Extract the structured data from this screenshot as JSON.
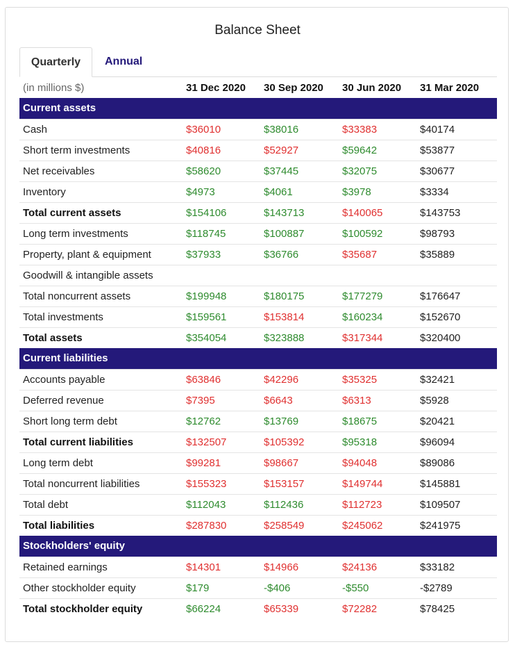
{
  "title": "Balance Sheet",
  "tabs": [
    {
      "label": "Quarterly",
      "active": true
    },
    {
      "label": "Annual",
      "active": false
    }
  ],
  "colors": {
    "header_bg": "#24197a",
    "positive": "#2e8b2e",
    "negative": "#e03030",
    "neutral": "#222222"
  },
  "table": {
    "unit_label": "(in millions $)",
    "columns": [
      "31 Dec 2020",
      "30 Sep 2020",
      "30 Jun 2020",
      "31 Mar 2020"
    ],
    "rows": [
      {
        "type": "section",
        "label": "Current assets"
      },
      {
        "label": "Cash",
        "bold": false,
        "cells": [
          {
            "v": "$36010",
            "c": "neg"
          },
          {
            "v": "$38016",
            "c": "pos"
          },
          {
            "v": "$33383",
            "c": "neg"
          },
          {
            "v": "$40174",
            "c": "neu"
          }
        ]
      },
      {
        "label": "Short term investments",
        "bold": false,
        "cells": [
          {
            "v": "$40816",
            "c": "neg"
          },
          {
            "v": "$52927",
            "c": "neg"
          },
          {
            "v": "$59642",
            "c": "pos"
          },
          {
            "v": "$53877",
            "c": "neu"
          }
        ]
      },
      {
        "label": "Net receivables",
        "bold": false,
        "cells": [
          {
            "v": "$58620",
            "c": "pos"
          },
          {
            "v": "$37445",
            "c": "pos"
          },
          {
            "v": "$32075",
            "c": "pos"
          },
          {
            "v": "$30677",
            "c": "neu"
          }
        ]
      },
      {
        "label": "Inventory",
        "bold": false,
        "cells": [
          {
            "v": "$4973",
            "c": "pos"
          },
          {
            "v": "$4061",
            "c": "pos"
          },
          {
            "v": "$3978",
            "c": "pos"
          },
          {
            "v": "$3334",
            "c": "neu"
          }
        ]
      },
      {
        "label": "Total current assets",
        "bold": true,
        "cells": [
          {
            "v": "$154106",
            "c": "pos"
          },
          {
            "v": "$143713",
            "c": "pos"
          },
          {
            "v": "$140065",
            "c": "neg"
          },
          {
            "v": "$143753",
            "c": "neu"
          }
        ]
      },
      {
        "label": "Long term investments",
        "bold": false,
        "cells": [
          {
            "v": "$118745",
            "c": "pos"
          },
          {
            "v": "$100887",
            "c": "pos"
          },
          {
            "v": "$100592",
            "c": "pos"
          },
          {
            "v": "$98793",
            "c": "neu"
          }
        ]
      },
      {
        "label": "Property, plant & equipment",
        "bold": false,
        "cells": [
          {
            "v": "$37933",
            "c": "pos"
          },
          {
            "v": "$36766",
            "c": "pos"
          },
          {
            "v": "$35687",
            "c": "neg"
          },
          {
            "v": "$35889",
            "c": "neu"
          }
        ]
      },
      {
        "label": "Goodwill & intangible assets",
        "bold": false,
        "cells": [
          {
            "v": "",
            "c": "neu"
          },
          {
            "v": "",
            "c": "neu"
          },
          {
            "v": "",
            "c": "neu"
          },
          {
            "v": "",
            "c": "neu"
          }
        ]
      },
      {
        "label": "Total noncurrent assets",
        "bold": false,
        "cells": [
          {
            "v": "$199948",
            "c": "pos"
          },
          {
            "v": "$180175",
            "c": "pos"
          },
          {
            "v": "$177279",
            "c": "pos"
          },
          {
            "v": "$176647",
            "c": "neu"
          }
        ]
      },
      {
        "label": "Total investments",
        "bold": false,
        "cells": [
          {
            "v": "$159561",
            "c": "pos"
          },
          {
            "v": "$153814",
            "c": "neg"
          },
          {
            "v": "$160234",
            "c": "pos"
          },
          {
            "v": "$152670",
            "c": "neu"
          }
        ]
      },
      {
        "label": "Total assets",
        "bold": true,
        "cells": [
          {
            "v": "$354054",
            "c": "pos"
          },
          {
            "v": "$323888",
            "c": "pos"
          },
          {
            "v": "$317344",
            "c": "neg"
          },
          {
            "v": "$320400",
            "c": "neu"
          }
        ]
      },
      {
        "type": "section",
        "label": "Current liabilities"
      },
      {
        "label": "Accounts payable",
        "bold": false,
        "cells": [
          {
            "v": "$63846",
            "c": "neg"
          },
          {
            "v": "$42296",
            "c": "neg"
          },
          {
            "v": "$35325",
            "c": "neg"
          },
          {
            "v": "$32421",
            "c": "neu"
          }
        ]
      },
      {
        "label": "Deferred revenue",
        "bold": false,
        "cells": [
          {
            "v": "$7395",
            "c": "neg"
          },
          {
            "v": "$6643",
            "c": "neg"
          },
          {
            "v": "$6313",
            "c": "neg"
          },
          {
            "v": "$5928",
            "c": "neu"
          }
        ]
      },
      {
        "label": "Short long term debt",
        "bold": false,
        "cells": [
          {
            "v": "$12762",
            "c": "pos"
          },
          {
            "v": "$13769",
            "c": "pos"
          },
          {
            "v": "$18675",
            "c": "pos"
          },
          {
            "v": "$20421",
            "c": "neu"
          }
        ]
      },
      {
        "label": "Total current liabilities",
        "bold": true,
        "cells": [
          {
            "v": "$132507",
            "c": "neg"
          },
          {
            "v": "$105392",
            "c": "neg"
          },
          {
            "v": "$95318",
            "c": "pos"
          },
          {
            "v": "$96094",
            "c": "neu"
          }
        ]
      },
      {
        "label": "Long term debt",
        "bold": false,
        "cells": [
          {
            "v": "$99281",
            "c": "neg"
          },
          {
            "v": "$98667",
            "c": "neg"
          },
          {
            "v": "$94048",
            "c": "neg"
          },
          {
            "v": "$89086",
            "c": "neu"
          }
        ]
      },
      {
        "label": "Total noncurrent liabilities",
        "bold": false,
        "cells": [
          {
            "v": "$155323",
            "c": "neg"
          },
          {
            "v": "$153157",
            "c": "neg"
          },
          {
            "v": "$149744",
            "c": "neg"
          },
          {
            "v": "$145881",
            "c": "neu"
          }
        ]
      },
      {
        "label": "Total debt",
        "bold": false,
        "cells": [
          {
            "v": "$112043",
            "c": "pos"
          },
          {
            "v": "$112436",
            "c": "pos"
          },
          {
            "v": "$112723",
            "c": "neg"
          },
          {
            "v": "$109507",
            "c": "neu"
          }
        ]
      },
      {
        "label": "Total liabilities",
        "bold": true,
        "cells": [
          {
            "v": "$287830",
            "c": "neg"
          },
          {
            "v": "$258549",
            "c": "neg"
          },
          {
            "v": "$245062",
            "c": "neg"
          },
          {
            "v": "$241975",
            "c": "neu"
          }
        ]
      },
      {
        "type": "section",
        "label": "Stockholders' equity"
      },
      {
        "label": "Retained earnings",
        "bold": false,
        "cells": [
          {
            "v": "$14301",
            "c": "neg"
          },
          {
            "v": "$14966",
            "c": "neg"
          },
          {
            "v": "$24136",
            "c": "neg"
          },
          {
            "v": "$33182",
            "c": "neu"
          }
        ]
      },
      {
        "label": "Other stockholder equity",
        "bold": false,
        "cells": [
          {
            "v": "$179",
            "c": "pos"
          },
          {
            "v": "-$406",
            "c": "pos"
          },
          {
            "v": "-$550",
            "c": "pos"
          },
          {
            "v": "-$2789",
            "c": "neu"
          }
        ]
      },
      {
        "label": "Total stockholder equity",
        "bold": true,
        "cells": [
          {
            "v": "$66224",
            "c": "pos"
          },
          {
            "v": "$65339",
            "c": "neg"
          },
          {
            "v": "$72282",
            "c": "neg"
          },
          {
            "v": "$78425",
            "c": "neu"
          }
        ]
      }
    ]
  }
}
